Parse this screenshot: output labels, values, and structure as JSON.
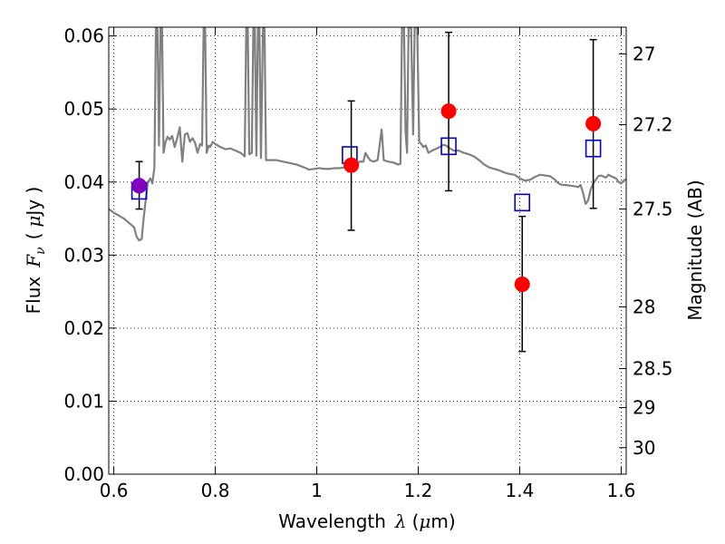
{
  "chart_data": {
    "type": "scatter",
    "xlabel": {
      "prefix": "Wavelength",
      "symbol": "λ",
      "unit_open": "(",
      "unit_mu": "μ",
      "unit_rest": "m)"
    },
    "ylabel": {
      "prefix": "Flux",
      "symbol": "F",
      "symbol_sub": "ν",
      "unit_open": "(",
      "unit_mu": "μ",
      "unit_rest": "Jy )"
    },
    "ylabel_right": "Magnitude (AB)",
    "xlim": [
      0.59,
      1.61
    ],
    "ylim": [
      0.0,
      0.0612
    ],
    "x_ticks": [
      {
        "value": 0.6,
        "label": "0.6"
      },
      {
        "value": 0.8,
        "label": "0.8"
      },
      {
        "value": 1.0,
        "label": "1"
      },
      {
        "value": 1.2,
        "label": "1.2"
      },
      {
        "value": 1.4,
        "label": "1.4"
      },
      {
        "value": 1.6,
        "label": "1.6"
      }
    ],
    "y_ticks": [
      {
        "value": 0.0,
        "label": "0.00"
      },
      {
        "value": 0.01,
        "label": "0.01"
      },
      {
        "value": 0.02,
        "label": "0.02"
      },
      {
        "value": 0.03,
        "label": "0.03"
      },
      {
        "value": 0.04,
        "label": "0.04"
      },
      {
        "value": 0.05,
        "label": "0.05"
      },
      {
        "value": 0.06,
        "label": "0.06"
      }
    ],
    "right_ticks": [
      {
        "value": 27.0,
        "label": "27"
      },
      {
        "value": 27.2,
        "label": "27.2"
      },
      {
        "value": 27.5,
        "label": "27.5"
      },
      {
        "value": 28.0,
        "label": "28"
      },
      {
        "value": 28.5,
        "label": "28.5"
      },
      {
        "value": 29.0,
        "label": "29"
      },
      {
        "value": 30.0,
        "label": "30"
      }
    ],
    "ab_zero_point_ujy": 3630780548,
    "grid": true,
    "colors": {
      "model_spectrum": "#808080",
      "observed": "#ff0000",
      "model_photometry": "#0000cc",
      "errorbar": "#000000",
      "overlap": "#8000c0"
    },
    "series": [
      {
        "kind": "line",
        "points": [
          [
            0.59,
            0.0363
          ],
          [
            0.6,
            0.0358
          ],
          [
            0.61,
            0.0354
          ],
          [
            0.62,
            0.035
          ],
          [
            0.63,
            0.0344
          ],
          [
            0.64,
            0.0338
          ],
          [
            0.645,
            0.0325
          ],
          [
            0.65,
            0.032
          ],
          [
            0.655,
            0.0322
          ],
          [
            0.658,
            0.0345
          ],
          [
            0.662,
            0.037
          ],
          [
            0.667,
            0.04
          ],
          [
            0.672,
            0.0405
          ],
          [
            0.676,
            0.0398
          ],
          [
            0.68,
            0.042
          ],
          [
            0.683,
            0.0612
          ],
          [
            0.686,
            0.0612
          ],
          [
            0.689,
            0.045
          ],
          [
            0.692,
            0.0612
          ],
          [
            0.695,
            0.0612
          ],
          [
            0.698,
            0.044
          ],
          [
            0.702,
            0.0455
          ],
          [
            0.706,
            0.0462
          ],
          [
            0.71,
            0.0458
          ],
          [
            0.715,
            0.0463
          ],
          [
            0.72,
            0.0448
          ],
          [
            0.725,
            0.046
          ],
          [
            0.73,
            0.0475
          ],
          [
            0.735,
            0.0428
          ],
          [
            0.74,
            0.0465
          ],
          [
            0.745,
            0.0467
          ],
          [
            0.75,
            0.0455
          ],
          [
            0.755,
            0.046
          ],
          [
            0.76,
            0.0454
          ],
          [
            0.765,
            0.044
          ],
          [
            0.77,
            0.0452
          ],
          [
            0.774,
            0.045
          ],
          [
            0.777,
            0.0612
          ],
          [
            0.78,
            0.0612
          ],
          [
            0.783,
            0.044
          ],
          [
            0.787,
            0.045
          ],
          [
            0.79,
            0.0448
          ],
          [
            0.795,
            0.0455
          ],
          [
            0.8,
            0.0452
          ],
          [
            0.81,
            0.0448
          ],
          [
            0.82,
            0.0445
          ],
          [
            0.83,
            0.0446
          ],
          [
            0.84,
            0.0443
          ],
          [
            0.85,
            0.044
          ],
          [
            0.855,
            0.0437
          ],
          [
            0.858,
            0.0435
          ],
          [
            0.861,
            0.0612
          ],
          [
            0.864,
            0.0612
          ],
          [
            0.867,
            0.0438
          ],
          [
            0.872,
            0.044
          ],
          [
            0.875,
            0.0612
          ],
          [
            0.878,
            0.0612
          ],
          [
            0.881,
            0.0436
          ],
          [
            0.884,
            0.0612
          ],
          [
            0.887,
            0.0612
          ],
          [
            0.89,
            0.0433
          ],
          [
            0.894,
            0.0612
          ],
          [
            0.897,
            0.0612
          ],
          [
            0.9,
            0.043
          ],
          [
            0.92,
            0.043
          ],
          [
            0.94,
            0.0427
          ],
          [
            0.96,
            0.0424
          ],
          [
            0.975,
            0.042
          ],
          [
            0.985,
            0.0417
          ],
          [
            0.995,
            0.0418
          ],
          [
            1.005,
            0.0419
          ],
          [
            1.015,
            0.0418
          ],
          [
            1.025,
            0.0418
          ],
          [
            1.035,
            0.0419
          ],
          [
            1.045,
            0.0419
          ],
          [
            1.055,
            0.042
          ],
          [
            1.065,
            0.0421
          ],
          [
            1.075,
            0.0424
          ],
          [
            1.085,
            0.0428
          ],
          [
            1.092,
            0.0428
          ],
          [
            1.096,
            0.044
          ],
          [
            1.1,
            0.0435
          ],
          [
            1.105,
            0.043
          ],
          [
            1.112,
            0.0428
          ],
          [
            1.12,
            0.043
          ],
          [
            1.128,
            0.0472
          ],
          [
            1.132,
            0.043
          ],
          [
            1.14,
            0.0428
          ],
          [
            1.15,
            0.0427
          ],
          [
            1.16,
            0.0424
          ],
          [
            1.165,
            0.0425
          ],
          [
            1.168,
            0.0612
          ],
          [
            1.172,
            0.0612
          ],
          [
            1.175,
            0.047
          ],
          [
            1.178,
            0.044
          ],
          [
            1.181,
            0.0612
          ],
          [
            1.186,
            0.0612
          ],
          [
            1.19,
            0.0465
          ],
          [
            1.193,
            0.0612
          ],
          [
            1.198,
            0.0612
          ],
          [
            1.202,
            0.0455
          ],
          [
            1.206,
            0.0452
          ],
          [
            1.21,
            0.0448
          ],
          [
            1.215,
            0.045
          ],
          [
            1.22,
            0.044
          ],
          [
            1.225,
            0.0442
          ],
          [
            1.23,
            0.0444
          ],
          [
            1.24,
            0.0447
          ],
          [
            1.25,
            0.0451
          ],
          [
            1.255,
            0.045
          ],
          [
            1.26,
            0.0447
          ],
          [
            1.27,
            0.0443
          ],
          [
            1.28,
            0.0443
          ],
          [
            1.29,
            0.044
          ],
          [
            1.3,
            0.0438
          ],
          [
            1.31,
            0.0435
          ],
          [
            1.32,
            0.043
          ],
          [
            1.33,
            0.0424
          ],
          [
            1.34,
            0.042
          ],
          [
            1.35,
            0.0418
          ],
          [
            1.36,
            0.0416
          ],
          [
            1.37,
            0.0413
          ],
          [
            1.38,
            0.0411
          ],
          [
            1.39,
            0.041
          ],
          [
            1.4,
            0.0405
          ],
          [
            1.41,
            0.0402
          ],
          [
            1.42,
            0.0403
          ],
          [
            1.43,
            0.0407
          ],
          [
            1.44,
            0.041
          ],
          [
            1.45,
            0.0409
          ],
          [
            1.46,
            0.0408
          ],
          [
            1.47,
            0.0403
          ],
          [
            1.475,
            0.0399
          ],
          [
            1.48,
            0.0397
          ],
          [
            1.485,
            0.0396
          ],
          [
            1.49,
            0.0396
          ],
          [
            1.5,
            0.0395
          ],
          [
            1.51,
            0.0394
          ],
          [
            1.515,
            0.0393
          ],
          [
            1.52,
            0.0396
          ],
          [
            1.525,
            0.0385
          ],
          [
            1.53,
            0.037
          ],
          [
            1.535,
            0.0375
          ],
          [
            1.54,
            0.039
          ],
          [
            1.545,
            0.0398
          ],
          [
            1.55,
            0.0403
          ],
          [
            1.555,
            0.0408
          ],
          [
            1.56,
            0.0409
          ],
          [
            1.57,
            0.0406
          ],
          [
            1.575,
            0.041
          ],
          [
            1.58,
            0.0408
          ],
          [
            1.59,
            0.0405
          ],
          [
            1.595,
            0.04
          ],
          [
            1.6,
            0.0398
          ],
          [
            1.605,
            0.0402
          ],
          [
            1.61,
            0.0404
          ]
        ]
      },
      {
        "kind": "markers-circle",
        "points": [
          {
            "x": 0.65,
            "y": 0.0395,
            "yerr_low": 0.0363,
            "yerr_high": 0.0428
          },
          {
            "x": 1.068,
            "y": 0.0423,
            "yerr_low": 0.0334,
            "yerr_high": 0.0511
          },
          {
            "x": 1.26,
            "y": 0.0497,
            "yerr_low": 0.0388,
            "yerr_high": 0.0605
          },
          {
            "x": 1.405,
            "y": 0.026,
            "yerr_low": 0.0168,
            "yerr_high": 0.0353
          },
          {
            "x": 1.545,
            "y": 0.048,
            "yerr_low": 0.0364,
            "yerr_high": 0.0595
          }
        ]
      },
      {
        "kind": "markers-square",
        "points": [
          {
            "x": 0.65,
            "y": 0.0388
          },
          {
            "x": 1.065,
            "y": 0.0437
          },
          {
            "x": 1.26,
            "y": 0.0449
          },
          {
            "x": 1.405,
            "y": 0.0372
          },
          {
            "x": 1.545,
            "y": 0.0446
          }
        ]
      }
    ]
  }
}
